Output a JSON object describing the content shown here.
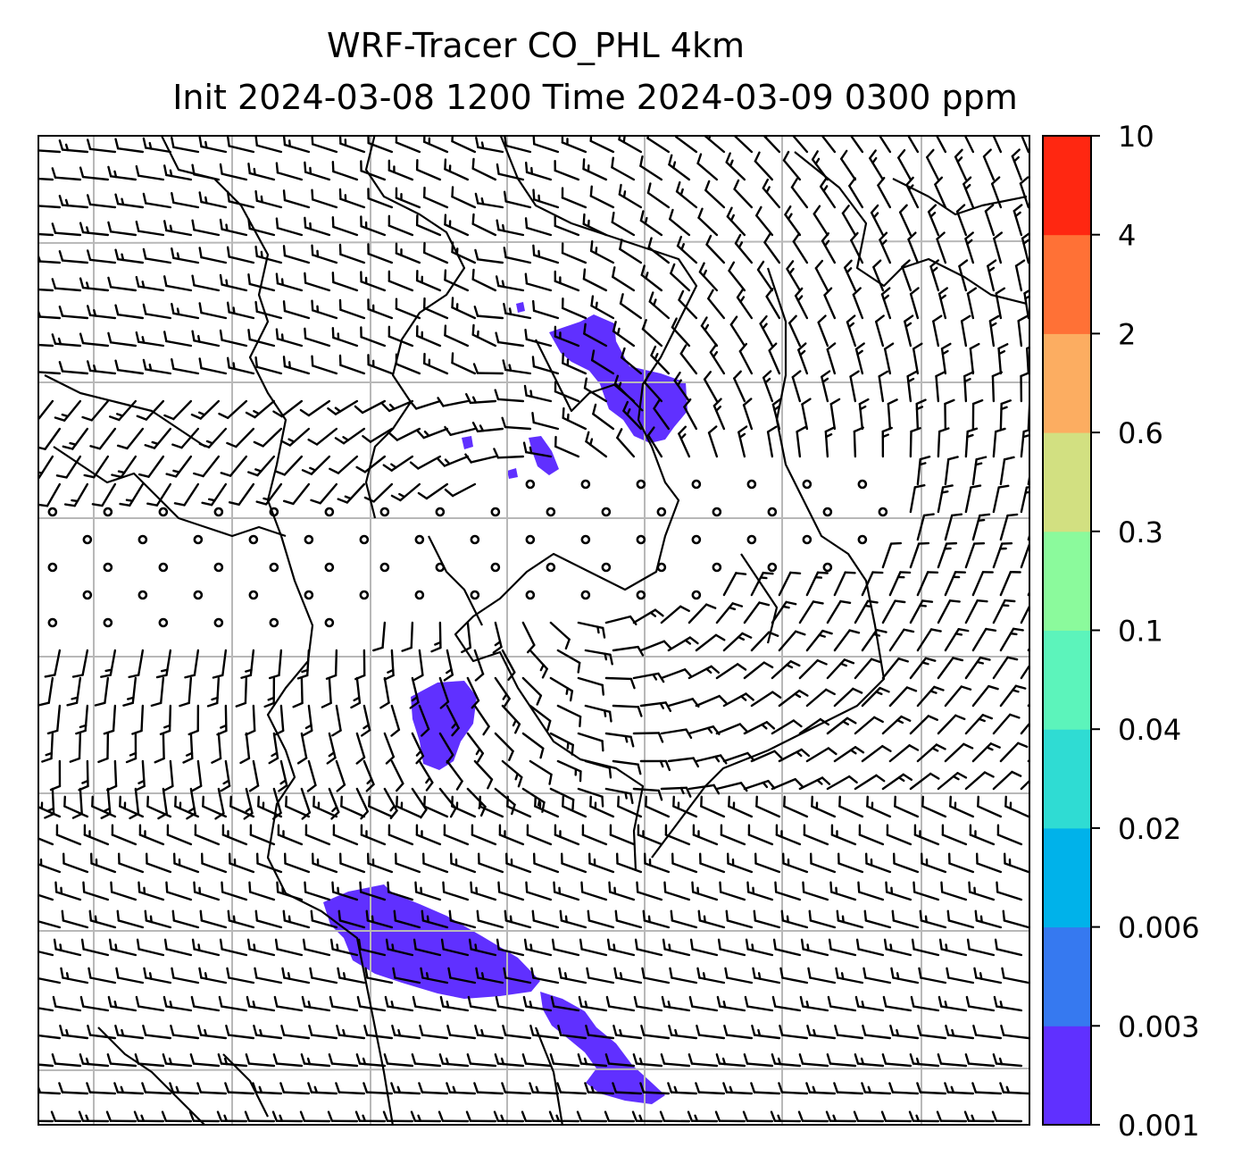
{
  "title": {
    "line1": "WRF-Tracer CO_PHL 4km",
    "line2": "Init 2024-03-08 1200 Time 2024-03-09 0300 ppm"
  },
  "colorbar": {
    "levels": [
      "0.001",
      "0.003",
      "0.006",
      "0.02",
      "0.04",
      "0.1",
      "0.3",
      "0.6",
      "2",
      "4",
      "10"
    ],
    "colors": [
      "#6030ff",
      "#3679f0",
      "#00b2ea",
      "#2fdcd3",
      "#5cf4bb",
      "#8bfa9c",
      "#d2e081",
      "#fcad61",
      "#ff7136",
      "#ff2711"
    ]
  },
  "map": {
    "plume_color": "#6030ff",
    "grid_color": "#b8b8b8",
    "coast_color": "#000000",
    "barb_color": "#000000"
  }
}
